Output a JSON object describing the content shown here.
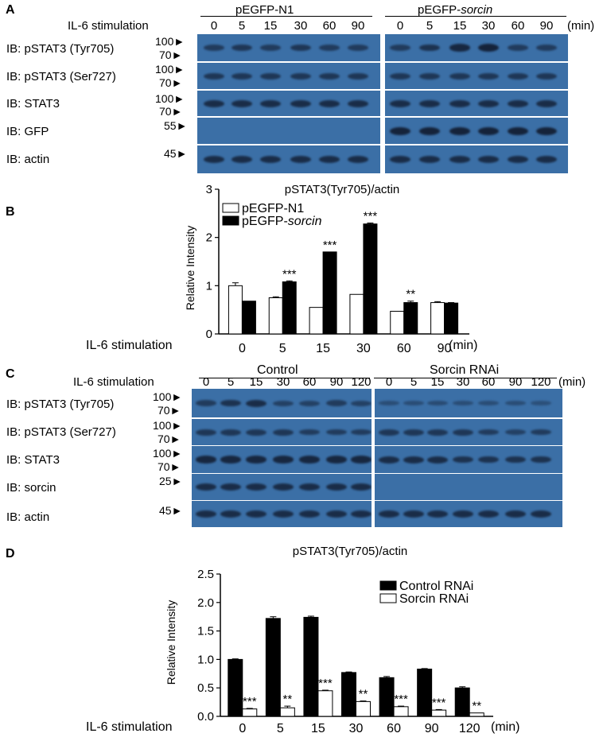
{
  "panelA": {
    "letter": "A",
    "stim_label": "IL-6 stimulation",
    "group_left": "pEGFP-N1",
    "group_right_prefix": "pEGFP-",
    "group_right_italic": "sorcin",
    "times": [
      "0",
      "5",
      "15",
      "30",
      "60",
      "90"
    ],
    "unit": "(min)",
    "ib_labels": [
      "IB: pSTAT3 (Tyr705)",
      "IB: pSTAT3 (Ser727)",
      "IB: STAT3",
      "IB: GFP",
      "IB: actin"
    ],
    "mw": [
      "100",
      "70",
      "100",
      "70",
      "100",
      "70",
      "55",
      "45"
    ]
  },
  "panelB": {
    "letter": "B",
    "stim_label": "IL-6 stimulation",
    "unit": "(min)",
    "chart_data": {
      "type": "bar",
      "title": "pSTAT3(Tyr705)/actin",
      "ylabel": "Relative Intensity",
      "xlabel": "IL-6 stimulation",
      "categories": [
        "0",
        "5",
        "15",
        "30",
        "60",
        "90"
      ],
      "ylim": [
        0,
        3
      ],
      "yticks": [
        "0",
        "1",
        "2",
        "3"
      ],
      "series": [
        {
          "name": "pEGFP-N1",
          "values": [
            1.0,
            0.75,
            0.55,
            0.82,
            0.47,
            0.65
          ],
          "errors": [
            0.06,
            0.02,
            0.0,
            0.0,
            0.0,
            0.02
          ]
        },
        {
          "name": "pEGFP-sorcin",
          "values": [
            0.68,
            1.08,
            1.7,
            2.28,
            0.65,
            0.64
          ],
          "errors": [
            0.0,
            0.02,
            0.0,
            0.02,
            0.03,
            0.01
          ]
        }
      ],
      "annotations": [
        "",
        "***",
        "***",
        "***",
        "**",
        ""
      ],
      "legend_placement": "top-left"
    }
  },
  "panelC": {
    "letter": "C",
    "stim_label": "IL-6 stimulation",
    "group_left": "Control",
    "group_right": "Sorcin RNAi",
    "times": [
      "0",
      "5",
      "15",
      "30",
      "60",
      "90",
      "120"
    ],
    "unit": "(min)",
    "ib_labels": [
      "IB: pSTAT3 (Tyr705)",
      "IB: pSTAT3 (Ser727)",
      "IB: STAT3",
      "IB: sorcin",
      "IB: actin"
    ],
    "mw": [
      "100",
      "70",
      "100",
      "70",
      "100",
      "70",
      "25",
      "45"
    ]
  },
  "panelD": {
    "letter": "D",
    "stim_label": "IL-6 stimulation",
    "unit": "(min)",
    "chart_data": {
      "type": "bar",
      "title": "pSTAT3(Tyr705)/actin",
      "ylabel": "Relative Intensity",
      "xlabel": "IL-6 stimulation",
      "categories": [
        "0",
        "5",
        "15",
        "30",
        "60",
        "90",
        "120"
      ],
      "ylim": [
        0,
        2.5
      ],
      "yticks": [
        "0.0",
        "0.5",
        "1.0",
        "1.5",
        "2.0",
        "2.5"
      ],
      "series": [
        {
          "name": "Control RNAi",
          "values": [
            1.0,
            1.72,
            1.74,
            0.77,
            0.68,
            0.83,
            0.5
          ],
          "errors": [
            0.01,
            0.03,
            0.02,
            0.01,
            0.02,
            0.01,
            0.02
          ]
        },
        {
          "name": "Sorcin RNAi",
          "values": [
            0.13,
            0.15,
            0.45,
            0.26,
            0.17,
            0.11,
            0.06
          ],
          "errors": [
            0.01,
            0.03,
            0.01,
            0.01,
            0.01,
            0.01,
            0.0
          ]
        }
      ],
      "annotations": [
        "***",
        "**",
        "***",
        "**",
        "***",
        "***",
        "**"
      ],
      "legend_placement": "top-right"
    }
  }
}
